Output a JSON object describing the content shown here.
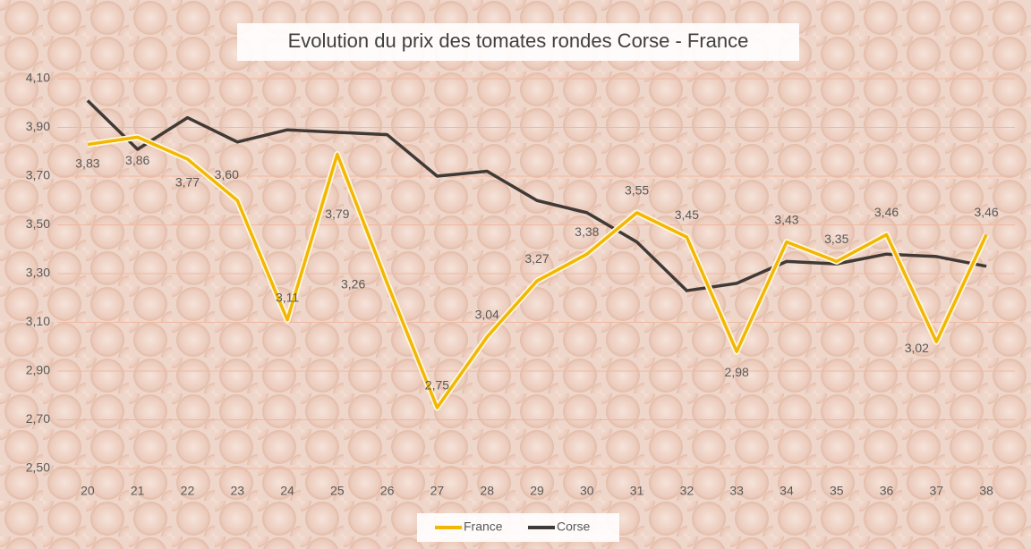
{
  "chart_data": {
    "type": "line",
    "title": "Evolution du prix des tomates rondes Corse - France",
    "categories": [
      "20",
      "21",
      "22",
      "23",
      "24",
      "25",
      "26",
      "27",
      "28",
      "29",
      "30",
      "31",
      "32",
      "33",
      "34",
      "35",
      "36",
      "37",
      "38"
    ],
    "series": [
      {
        "name": "France",
        "color": "#f2b705",
        "values": [
          3.83,
          3.86,
          3.77,
          3.6,
          3.11,
          3.79,
          3.26,
          2.75,
          3.04,
          3.27,
          3.38,
          3.55,
          3.45,
          2.98,
          3.43,
          3.35,
          3.46,
          3.02,
          3.46
        ],
        "value_labels": [
          "3,83",
          "3,86",
          "3,77",
          "3,60",
          "3,11",
          "3,79",
          "3,26",
          "2,75",
          "3,04",
          "3,27",
          "3,38",
          "3,55",
          "3,45",
          "2,98",
          "3,43",
          "3,35",
          "3,46",
          "3,02",
          "3,46"
        ]
      },
      {
        "name": "Corse",
        "color": "#403a36",
        "values": [
          4.01,
          3.81,
          3.94,
          3.84,
          3.89,
          3.88,
          3.87,
          3.7,
          3.72,
          3.6,
          3.55,
          3.43,
          3.23,
          3.26,
          3.35,
          3.34,
          3.38,
          3.37,
          3.33
        ]
      }
    ],
    "ylim": [
      2.5,
      4.1
    ],
    "yticks": [
      {
        "value": 2.5,
        "label": "2,50"
      },
      {
        "value": 2.7,
        "label": "2,70"
      },
      {
        "value": 2.9,
        "label": "2,90"
      },
      {
        "value": 3.1,
        "label": "3,10"
      },
      {
        "value": 3.3,
        "label": "3,30"
      },
      {
        "value": 3.5,
        "label": "3,50"
      },
      {
        "value": 3.7,
        "label": "3,70"
      },
      {
        "value": 3.9,
        "label": "3,90"
      },
      {
        "value": 4.1,
        "label": "4,10"
      }
    ],
    "grid": true,
    "legend": "bottom"
  }
}
